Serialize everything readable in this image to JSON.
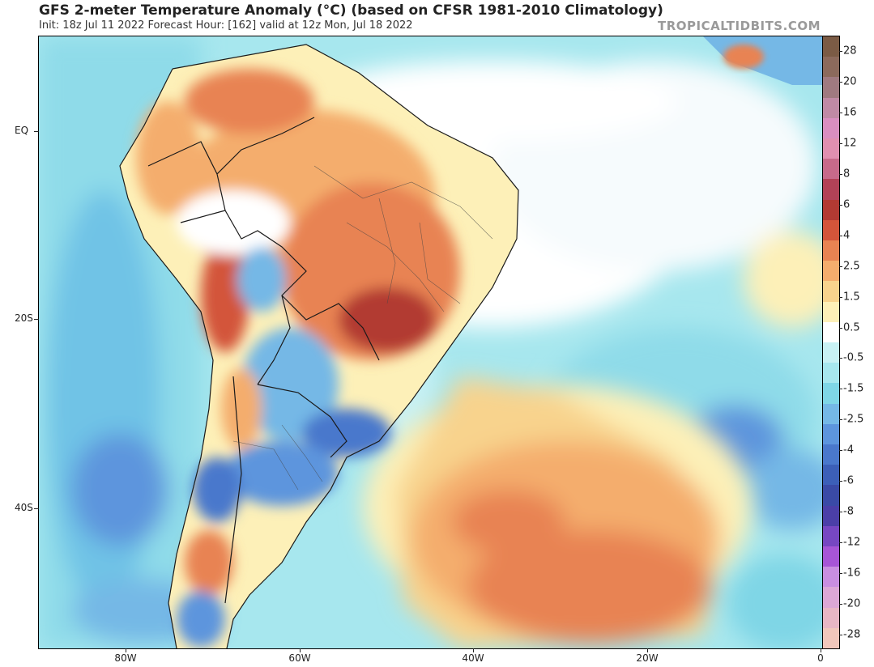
{
  "header": {
    "title": "GFS 2-meter Temperature Anomaly (°C) (based on CFSR 1981-2010 Climatology)",
    "subtitle": "Init: 18z Jul 11 2022   Forecast Hour: [162]   valid at 12z Mon, Jul 18 2022",
    "brand": "TROPICALTIDBITS.COM"
  },
  "map": {
    "lat_labels": [
      "EQ",
      "20S",
      "40S"
    ],
    "lon_labels": [
      "80W",
      "60W",
      "40W",
      "20W",
      "0"
    ]
  },
  "colorbar": {
    "labels": [
      "28",
      "20",
      "16",
      "12",
      "8",
      "6",
      "4",
      "2.5",
      "1.5",
      "0.5",
      "-0.5",
      "-1.5",
      "-2.5",
      "-4",
      "-6",
      "-8",
      "-12",
      "-16",
      "-20",
      "-28"
    ],
    "colors": [
      "#7b5b45",
      "#8c6a5c",
      "#a07a80",
      "#c08aa5",
      "#d98ec0",
      "#e08fb0",
      "#c76a8a",
      "#b24257",
      "#b23a33",
      "#d3553a",
      "#e88352",
      "#f4ad6d",
      "#f8d38d",
      "#fdf0b8",
      "#ffffff",
      "#c8f1f4",
      "#a7e7ee",
      "#7fd6e6",
      "#75b8e6",
      "#5d95dd",
      "#4a78cc",
      "#3c5fb8",
      "#3a4aa6",
      "#4b3fa8",
      "#7747c2",
      "#a755d6",
      "#c98ee0",
      "#dca7d6",
      "#e8b6c5",
      "#f1c7bc"
    ],
    "title_unit": "°C"
  }
}
